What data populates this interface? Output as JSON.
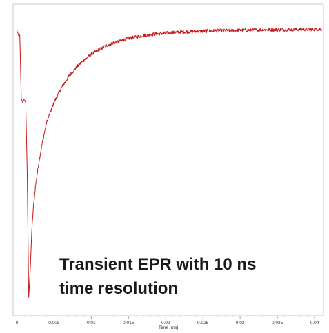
{
  "chart_data": {
    "type": "line",
    "title": "",
    "xlabel": "Time [ms]",
    "ylabel": "",
    "xlim": [
      -0.0005,
      0.0412
    ],
    "ylim": [
      0,
      1
    ],
    "x_ticks": [
      0,
      0.005,
      0.01,
      0.015,
      0.02,
      0.025,
      0.03,
      0.035,
      0.04
    ],
    "x_tick_labels": [
      "0",
      "0.005",
      "0.01",
      "0.015",
      "0.02",
      "0.025",
      "0.03",
      "0.035",
      "0.04"
    ],
    "grid": false,
    "legend": "none",
    "annotation": [
      "Transient EPR with 10 ns",
      "time resolution"
    ],
    "series": [
      {
        "color": "#c8171a",
        "x": [
          0,
          0.0002,
          0.0004,
          0.0006,
          0.0008,
          0.001,
          0.0012,
          0.0014,
          0.0016,
          0.0018,
          0.002,
          0.0022,
          0.0025,
          0.003,
          0.0035,
          0.004,
          0.005,
          0.006,
          0.007,
          0.008,
          0.009,
          0.01,
          0.011,
          0.012,
          0.013,
          0.014,
          0.015,
          0.016,
          0.017,
          0.018,
          0.019,
          0.02,
          0.022,
          0.024,
          0.026,
          0.028,
          0.03,
          0.032,
          0.034,
          0.036,
          0.038,
          0.04,
          0.041
        ],
        "y": [
          0.95,
          0.93,
          0.93,
          0.71,
          0.7,
          0.71,
          0.7,
          0.45,
          0.03,
          0.12,
          0.25,
          0.33,
          0.41,
          0.5,
          0.57,
          0.63,
          0.7,
          0.75,
          0.79,
          0.82,
          0.845,
          0.865,
          0.88,
          0.895,
          0.905,
          0.912,
          0.92,
          0.925,
          0.93,
          0.933,
          0.936,
          0.938,
          0.942,
          0.944,
          0.946,
          0.947,
          0.948,
          0.949,
          0.95,
          0.95,
          0.951,
          0.951,
          0.951
        ]
      }
    ]
  }
}
